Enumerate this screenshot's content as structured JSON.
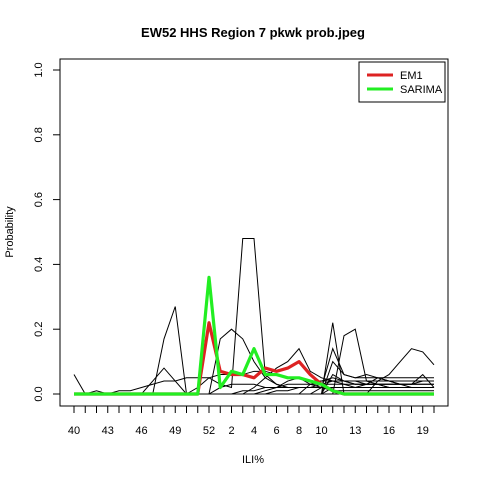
{
  "chart_data": {
    "type": "line",
    "title": "EW52 HHS Region 7 pkwk prob.jpeg",
    "xlabel": "ILI%",
    "ylabel": "Probability",
    "ylim": [
      0,
      1
    ],
    "y_ticks": [
      0.0,
      0.2,
      0.4,
      0.6,
      0.8,
      1.0
    ],
    "y_tick_labels": [
      "0.0",
      "0.2",
      "0.4",
      "0.6",
      "0.8",
      "1.0"
    ],
    "x": [
      40,
      41,
      42,
      43,
      44,
      45,
      46,
      47,
      48,
      49,
      50,
      51,
      52,
      1,
      2,
      3,
      4,
      5,
      6,
      7,
      8,
      9,
      10,
      11,
      12,
      13,
      14,
      15,
      16,
      17,
      18,
      19,
      20
    ],
    "x_tick_labels": [
      "40",
      "43",
      "46",
      "49",
      "52",
      "2",
      "4",
      "6",
      "8",
      "10",
      "13",
      "16",
      "19"
    ],
    "legend": {
      "position": "top-right"
    },
    "series": [
      {
        "name": "EM1",
        "color": "#dd2222",
        "values": [
          0,
          0,
          0,
          0,
          0,
          0,
          0,
          0,
          0,
          0,
          0,
          0,
          0.22,
          0.07,
          0.06,
          0.06,
          0.05,
          0.08,
          0.07,
          0.08,
          0.1,
          0.06,
          0.03,
          0.01,
          0,
          0,
          0,
          0,
          0,
          0,
          0,
          0,
          0
        ]
      },
      {
        "name": "SARIMA",
        "color": "#22ee22",
        "values": [
          0,
          0,
          0,
          0,
          0,
          0,
          0,
          0,
          0,
          0,
          0,
          0,
          0.36,
          0.02,
          0.07,
          0.06,
          0.14,
          0.06,
          0.06,
          0.05,
          0.05,
          0.04,
          0.03,
          0.01,
          0,
          0,
          0,
          0,
          0,
          0,
          0,
          0,
          0
        ]
      }
    ],
    "background_series_color": "#000000",
    "background_series": [
      [
        0.06,
        0,
        0,
        0,
        0,
        0,
        0,
        0,
        0,
        0,
        0,
        0,
        0,
        0,
        0,
        0.01,
        0.01,
        0.02,
        0.02,
        0.03,
        0.03,
        0.03,
        0.03,
        0.03,
        0.03,
        0.03,
        0.03,
        0.03,
        0.03,
        0.03,
        0.03,
        0.03,
        0.03
      ],
      [
        0,
        0,
        0.01,
        0,
        0.01,
        0.01,
        0.02,
        0.03,
        0.04,
        0.04,
        0.05,
        0.05,
        0.05,
        0.06,
        0.06,
        0.06,
        0.07,
        0.07,
        0.06,
        0.05,
        0.05,
        0.04,
        0.04,
        0.04,
        0.04,
        0.04,
        0.04,
        0.04,
        0.04,
        0.04,
        0.04,
        0.04,
        0.04
      ],
      [
        0,
        0,
        0,
        0,
        0,
        0,
        0,
        0,
        0.17,
        0.27,
        0,
        0,
        0,
        0,
        0,
        0,
        0,
        0,
        0,
        0,
        0,
        0,
        0,
        0,
        0,
        0,
        0,
        0,
        0,
        0,
        0,
        0,
        0
      ],
      [
        0,
        0,
        0,
        0,
        0,
        0,
        0,
        0,
        0,
        0,
        0,
        0.02,
        0.05,
        0.03,
        0.02,
        0.48,
        0.48,
        0.06,
        0.03,
        0.02,
        0.02,
        0.02,
        0.02,
        0.02,
        0.02,
        0.02,
        0.02,
        0.02,
        0.02,
        0.02,
        0.02,
        0.02,
        0.02
      ],
      [
        0,
        0,
        0,
        0,
        0,
        0,
        0,
        0,
        0,
        0,
        0,
        0,
        0,
        0.17,
        0.2,
        0.17,
        0.1,
        0.05,
        0.03,
        0.02,
        0.02,
        0.02,
        0.02,
        0.02,
        0.02,
        0.02,
        0.02,
        0.02,
        0.02,
        0.02,
        0.02,
        0.02,
        0.02
      ],
      [
        0,
        0,
        0,
        0,
        0,
        0,
        0,
        0,
        0,
        0,
        0,
        0,
        0,
        0,
        0,
        0,
        0,
        0,
        0,
        0,
        0,
        0,
        0,
        0.22,
        0,
        0,
        0,
        0,
        0,
        0,
        0,
        0,
        0
      ],
      [
        0,
        0,
        0,
        0,
        0,
        0,
        0,
        0,
        0,
        0,
        0,
        0,
        0,
        0,
        0,
        0,
        0,
        0,
        0,
        0,
        0,
        0,
        0,
        0,
        0.18,
        0.2,
        0.04,
        0.03,
        0.02,
        0.02,
        0.02,
        0.02,
        0.02
      ],
      [
        0,
        0,
        0,
        0,
        0,
        0,
        0,
        0,
        0,
        0,
        0,
        0,
        0,
        0,
        0,
        0,
        0,
        0,
        0,
        0,
        0,
        0,
        0,
        0,
        0,
        0,
        0,
        0.04,
        0.06,
        0.1,
        0.14,
        0.13,
        0.09
      ],
      [
        0,
        0,
        0,
        0,
        0,
        0,
        0,
        0.04,
        0.08,
        0.04,
        0,
        0,
        0,
        0,
        0,
        0,
        0,
        0,
        0,
        0,
        0,
        0,
        0,
        0,
        0,
        0,
        0,
        0,
        0,
        0,
        0,
        0,
        0
      ],
      [
        0,
        0,
        0,
        0,
        0,
        0,
        0,
        0,
        0,
        0,
        0,
        0,
        0,
        0,
        0,
        0,
        0.02,
        0.05,
        0.08,
        0.1,
        0.14,
        0.07,
        0.05,
        0.04,
        0.04,
        0.03,
        0.03,
        0.03,
        0.03,
        0.03,
        0.03,
        0.03,
        0.03
      ],
      [
        0,
        0,
        0,
        0,
        0,
        0,
        0,
        0,
        0,
        0,
        0,
        0,
        0,
        0,
        0,
        0,
        0,
        0,
        0,
        0,
        0,
        0,
        0.02,
        0.14,
        0.06,
        0.05,
        0.06,
        0.05,
        0.04,
        0.03,
        0.03,
        0.04,
        0.04
      ],
      [
        0,
        0,
        0,
        0,
        0,
        0,
        0,
        0,
        0,
        0,
        0,
        0,
        0,
        0,
        0,
        0,
        0,
        0,
        0,
        0,
        0,
        0,
        0,
        0.06,
        0.04,
        0.03,
        0.03,
        0.03,
        0.02,
        0.02,
        0.02,
        0.02,
        0.02
      ],
      [
        0,
        0,
        0,
        0,
        0,
        0,
        0,
        0,
        0,
        0,
        0,
        0,
        0,
        0,
        0,
        0,
        0,
        0,
        0,
        0,
        0,
        0.03,
        0.04,
        0.05,
        0.04,
        0.04,
        0.03,
        0.03,
        0.03,
        0.03,
        0.03,
        0.06,
        0.02
      ],
      [
        0,
        0,
        0,
        0,
        0,
        0,
        0,
        0,
        0,
        0,
        0,
        0,
        0,
        0,
        0,
        0,
        0,
        0,
        0.01,
        0.01,
        0.02,
        0.02,
        0.03,
        0.04,
        0.03,
        0.02,
        0.02,
        0.02,
        0.02,
        0.02,
        0.02,
        0.02,
        0.02
      ],
      [
        0,
        0,
        0,
        0,
        0,
        0,
        0,
        0,
        0,
        0,
        0,
        0,
        0,
        0.02,
        0.03,
        0.03,
        0.03,
        0.02,
        0.02,
        0.02,
        0.02,
        0.02,
        0.02,
        0.02,
        0.02,
        0.02,
        0.02,
        0.02,
        0.02,
        0.02,
        0.02,
        0.02,
        0.02
      ],
      [
        0,
        0,
        0,
        0,
        0,
        0,
        0,
        0,
        0,
        0,
        0,
        0,
        0,
        0,
        0,
        0,
        0,
        0,
        0,
        0,
        0,
        0,
        0,
        0.1,
        0.06,
        0.05,
        0.05,
        0.05,
        0.05,
        0.05,
        0.05,
        0.05,
        0.05
      ],
      [
        0,
        0,
        0,
        0,
        0,
        0,
        0,
        0,
        0,
        0,
        0,
        0,
        0,
        0,
        0,
        0,
        0,
        0,
        0,
        0,
        0,
        0,
        0,
        0.02,
        0.02,
        0.02,
        0.03,
        0.05,
        0.04,
        0.03,
        0.02,
        0.02,
        0.02
      ],
      [
        0,
        0,
        0,
        0,
        0,
        0,
        0,
        0,
        0,
        0,
        0,
        0,
        0,
        0,
        0,
        0,
        0,
        0.01,
        0.02,
        0.04,
        0.05,
        0.03,
        0.02,
        0.01,
        0.01,
        0.01,
        0.01,
        0.01,
        0.01,
        0.01,
        0.01,
        0.01,
        0.01
      ]
    ]
  }
}
